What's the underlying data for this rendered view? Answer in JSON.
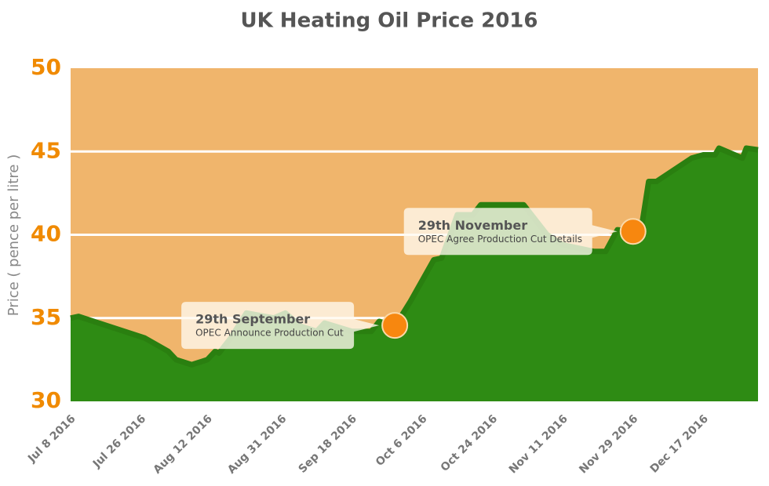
{
  "chart_data": {
    "type": "area",
    "title": "UK Heating Oil Price 2016",
    "y_label": "Price ( pence per litre )",
    "x": [
      "Jul 8 2016",
      "Jul 10 2016",
      "Jul 27 2016",
      "Aug 2 2016",
      "Aug 4 2016",
      "Aug 8 2016",
      "Aug 12 2016",
      "Aug 14 2016",
      "Aug 15 2016",
      "Aug 18 2016",
      "Aug 22 2016",
      "Aug 29 2016",
      "Sep 1 2016",
      "Sep 5 2016",
      "Sep 9 2016",
      "Sep 11 2016",
      "Sep 18 2016",
      "Sep 23 2016",
      "Sep 25 2016",
      "Sep 29 2016",
      "Oct 3 2016",
      "Oct 9 2016",
      "Oct 11 2016",
      "Oct 15 2016",
      "Oct 19 2016",
      "Oct 21 2016",
      "Nov 1 2016",
      "Nov 7 2016",
      "Nov 11 2016",
      "Nov 19 2016",
      "Nov 22 2016",
      "Nov 25 2016",
      "Nov 29 2016",
      "Dec 1 2016",
      "Dec 3 2016",
      "Dec 5 2016",
      "Dec 14 2016",
      "Dec 17 2016",
      "Dec 20 2016",
      "Dec 21 2016",
      "Dec 24 2016",
      "Dec 27 2016",
      "Dec 28 2016",
      "Dec 31 2016"
    ],
    "values": [
      35.0,
      35.1,
      33.8,
      33.0,
      32.5,
      32.2,
      32.5,
      33.0,
      32.9,
      33.8,
      35.3,
      35.0,
      35.3,
      34.5,
      34.2,
      34.7,
      34.2,
      34.2,
      34.8,
      34.5,
      36.0,
      38.5,
      38.6,
      41.2,
      41.2,
      41.8,
      41.8,
      40.0,
      39.4,
      39.0,
      39.0,
      40.3,
      40.2,
      40.2,
      43.2,
      43.2,
      44.6,
      44.8,
      44.8,
      45.2,
      44.9,
      44.6,
      45.2,
      45.1
    ],
    "color": "#2e8b14",
    "line_color": "#2a7f10",
    "background": "#f0b56c",
    "xlim": [
      "Jul 8 2016",
      "Dec 31 2016"
    ],
    "xticks": [
      "Jul 8 2016",
      "Jul 26 2016",
      "Aug 12 2016",
      "Aug 31 2016",
      "Sep 18 2016",
      "Oct 6 2016",
      "Oct 24 2016",
      "Nov 11 2016",
      "Nov 29 2016",
      "Dec 17 2016"
    ],
    "ylim": [
      30,
      50
    ],
    "yticks": [
      30,
      35,
      40,
      45,
      50
    ],
    "grid": true,
    "annotations": [
      {
        "x": "Sep 29 2016",
        "y": 34.56,
        "title": "29th September",
        "text": "OPEC Announce Production Cut",
        "color": "#f7870f"
      },
      {
        "x": "Nov 29 2016",
        "y": 40.2,
        "title": "29th November",
        "text": "OPEC Agree Production Cut Details",
        "color": "#f7870f"
      }
    ]
  }
}
